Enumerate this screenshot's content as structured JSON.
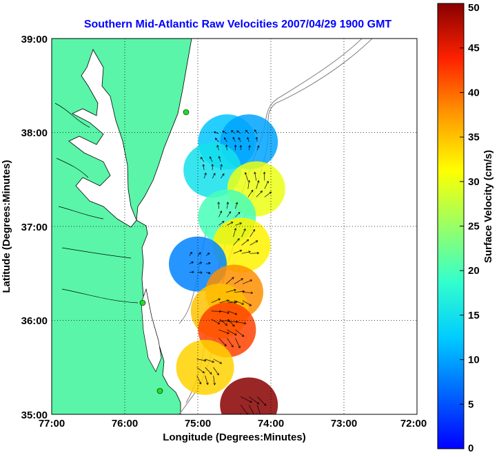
{
  "title": "Southern Mid-Atlantic Raw Velocities 2007/04/29 1900 GMT",
  "xlabel": "Longitude (Degrees:Minutes)",
  "ylabel": "Latitude (Degrees:Minutes)",
  "colorbar": {
    "label": "Surface Velocity (cm/s)",
    "ticks": [
      "0",
      "5",
      "10",
      "15",
      "20",
      "25",
      "30",
      "35",
      "40",
      "45",
      "50"
    ]
  },
  "xticks": [
    "77:00",
    "76:00",
    "75:00",
    "74:00",
    "73:00",
    "72:00"
  ],
  "yticks": [
    "39:00",
    "38:00",
    "37:00",
    "36:00",
    "35:00"
  ],
  "colors": {
    "land": "#5af5a8",
    "title": "#0000ff",
    "bathymetry": "#888888",
    "station": "#22dd22"
  },
  "chart_data": {
    "type": "map",
    "x_range_deg_west": [
      77,
      72
    ],
    "y_range_deg_north": [
      35,
      39
    ],
    "grid": true,
    "vector_field_cm_s": [
      {
        "lon": -74.6,
        "lat": 37.9,
        "speed": 12
      },
      {
        "lon": -74.3,
        "lat": 37.9,
        "speed": 10
      },
      {
        "lon": -74.8,
        "lat": 37.6,
        "speed": 15
      },
      {
        "lon": -74.2,
        "lat": 37.4,
        "speed": 30
      },
      {
        "lon": -74.6,
        "lat": 37.1,
        "speed": 20
      },
      {
        "lon": -74.4,
        "lat": 36.8,
        "speed": 32
      },
      {
        "lon": -75.0,
        "lat": 36.6,
        "speed": 8
      },
      {
        "lon": -74.5,
        "lat": 36.3,
        "speed": 38
      },
      {
        "lon": -74.7,
        "lat": 36.1,
        "speed": 35
      },
      {
        "lon": -74.6,
        "lat": 35.9,
        "speed": 42
      },
      {
        "lon": -74.9,
        "lat": 35.5,
        "speed": 34
      },
      {
        "lon": -74.3,
        "lat": 35.1,
        "speed": 50
      }
    ]
  }
}
